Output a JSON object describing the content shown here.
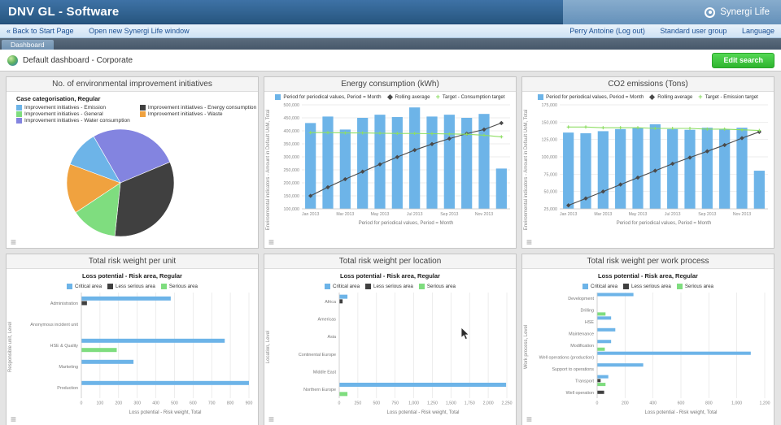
{
  "theme": {
    "header_blue": "#2f639a",
    "accent_green": "#3bc43b",
    "bar_blue": "#6db4e8",
    "series_dark": "#404040",
    "series_green": "#7fdd7f"
  },
  "header": {
    "app_title": "DNV GL - Software",
    "brand": "Synergi Life"
  },
  "toolbar": {
    "back_link": "« Back to Start Page",
    "open_window_link": "Open new Synergi Life window",
    "user_link": "Perry Antoine (Log out)",
    "user_group_link": "Standard user group",
    "language_link": "Language"
  },
  "tab_bar": {
    "active_tab": "Dashboard"
  },
  "breadcrumb": {
    "label": "Default dashboard - Corporate"
  },
  "actions": {
    "edit_search": "Edit search"
  },
  "chart_data": [
    {
      "type": "pie",
      "title": "No. of environmental improvement initiatives",
      "legend_title": "Case categorisation, Regular",
      "slices": [
        {
          "label": "Improvement initiatives - Emission",
          "value": 11,
          "color": "#6db4e8"
        },
        {
          "label": "Improvement initiatives - Energy consumption",
          "value": 33,
          "color": "#404040"
        },
        {
          "label": "Improvement initiatives - General",
          "value": 14,
          "color": "#7fdd7f"
        },
        {
          "label": "Improvement initiatives - Waste",
          "value": 15,
          "color": "#f0a23f"
        },
        {
          "label": "Improvement initiatives - Water consumption",
          "value": 27,
          "color": "#8384e0"
        }
      ],
      "draw_order": [
        4,
        1,
        2,
        3,
        0
      ],
      "start_angle": -30
    },
    {
      "type": "column",
      "title": "Energy consumption (kWh)",
      "x_label": "Period for periodical values, Period = Month",
      "y_label": "Environmental indicators - Amount in Default UoM, Total",
      "y_min": 100000,
      "y_max": 500000,
      "y_step": 50000,
      "tick_every": 2,
      "categories": [
        "Jan 2013",
        "Feb 2013",
        "Mar 2013",
        "Apr 2013",
        "May 2013",
        "Jun 2013",
        "Jul 2013",
        "Aug 2013",
        "Sep 2013",
        "Oct 2013",
        "Nov 2013",
        "Dec 2013"
      ],
      "series": [
        {
          "name": "Period for periodical values, Period = Month",
          "type": "bar",
          "color": "#6db4e8",
          "values": [
            430000,
            455000,
            405000,
            450000,
            462000,
            453000,
            490000,
            455000,
            462000,
            450000,
            465000,
            255000
          ]
        },
        {
          "name": "Rolling average",
          "type": "line",
          "marker": "diamond",
          "color": "#4a4a4a",
          "values": [
            150000,
            183000,
            214000,
            243000,
            271000,
            299000,
            326000,
            349000,
            370000,
            389000,
            405000,
            430000
          ]
        },
        {
          "name": "Target - Consumption target",
          "type": "line",
          "marker": "plus",
          "color": "#8ede64",
          "values": [
            393000,
            393000,
            392000,
            392000,
            391000,
            390000,
            390000,
            389000,
            388000,
            387000,
            383000,
            377000
          ]
        }
      ]
    },
    {
      "type": "column",
      "title": "CO2 emissions (Tons)",
      "x_label": "Period for periodical values, Period = Month",
      "y_label": "Environmental indicators - Amount in Default UoM, Total",
      "y_min": 25000,
      "y_max": 175000,
      "y_step": 25000,
      "tick_every": 2,
      "categories": [
        "Jan 2013",
        "Feb 2013",
        "Mar 2013",
        "Apr 2013",
        "May 2013",
        "Jun 2013",
        "Jul 2013",
        "Aug 2013",
        "Sep 2013",
        "Oct 2013",
        "Nov 2013",
        "Dec 2013"
      ],
      "series": [
        {
          "name": "Period for periodical values, Period = Month",
          "type": "bar",
          "color": "#6db4e8",
          "values": [
            135000,
            134000,
            137000,
            140000,
            142000,
            147000,
            140000,
            139000,
            142000,
            140000,
            142000,
            80000
          ]
        },
        {
          "name": "Rolling average",
          "type": "line",
          "marker": "diamond",
          "color": "#4a4a4a",
          "values": [
            30000,
            40000,
            50000,
            60000,
            70000,
            80000,
            90000,
            99000,
            108000,
            117000,
            127000,
            136000
          ]
        },
        {
          "name": "Target - Emission target",
          "type": "line",
          "marker": "plus",
          "color": "#8ede64",
          "values": [
            143000,
            143000,
            142000,
            142000,
            142000,
            141000,
            141000,
            141000,
            140000,
            140000,
            139000,
            138000
          ]
        }
      ]
    },
    {
      "type": "hbar",
      "title": "Total risk weight per unit",
      "legend_title": "Loss potential - Risk area, Regular",
      "x_label": "Loss potential - Risk weight, Total",
      "y_label": "Responsible unit, Level",
      "x_max": 900,
      "x_step": 100,
      "series_names": [
        "Critical area",
        "Less serious area",
        "Serious area"
      ],
      "series_colors": [
        "#6db4e8",
        "#404040",
        "#7fdd7f"
      ],
      "categories": [
        "Administration",
        "Anonymous incident unit",
        "HSE & Quality",
        "Marketing",
        "Production"
      ],
      "values": [
        [
          480,
          30,
          0
        ],
        [
          0,
          0,
          0
        ],
        [
          770,
          0,
          190
        ],
        [
          280,
          0,
          0
        ],
        [
          900,
          0,
          0
        ]
      ]
    },
    {
      "type": "hbar",
      "title": "Total risk weight per location",
      "legend_title": "Loss potential - Risk area, Regular",
      "x_label": "Loss potential - Risk weight, Total",
      "y_label": "Location, Level",
      "x_max": 2250,
      "x_step": 250,
      "series_names": [
        "Critical area",
        "Less serious area",
        "Serious area"
      ],
      "series_colors": [
        "#6db4e8",
        "#404040",
        "#7fdd7f"
      ],
      "categories": [
        "Africa",
        "Americas",
        "Asia",
        "Continental Europe",
        "Middle East",
        "Northern Europe"
      ],
      "values": [
        [
          110,
          45,
          0
        ],
        [
          0,
          0,
          0
        ],
        [
          0,
          0,
          0
        ],
        [
          0,
          0,
          0
        ],
        [
          0,
          0,
          0
        ],
        [
          2240,
          0,
          110
        ]
      ]
    },
    {
      "type": "hbar",
      "title": "Total risk weight per work process",
      "legend_title": "Loss potential - Risk area, Regular",
      "x_label": "Loss potential - Risk weight, Total",
      "y_label": "Work process, Level",
      "x_max": 1200,
      "x_step": 200,
      "series_names": [
        "Critical area",
        "Less serious area",
        "Serious area"
      ],
      "series_colors": [
        "#6db4e8",
        "#404040",
        "#7fdd7f"
      ],
      "categories": [
        "Development",
        "Drilling",
        "HSE",
        "Maintenance",
        "Modification",
        "Well operations (production)",
        "Support to operations",
        "Transport",
        "Well operation"
      ],
      "values": [
        [
          260,
          0,
          0
        ],
        [
          0,
          0,
          60
        ],
        [
          100,
          0,
          0
        ],
        [
          130,
          0,
          0
        ],
        [
          100,
          0,
          55
        ],
        [
          1100,
          0,
          0
        ],
        [
          330,
          0,
          0
        ],
        [
          80,
          25,
          60
        ],
        [
          0,
          50,
          0
        ]
      ]
    }
  ]
}
